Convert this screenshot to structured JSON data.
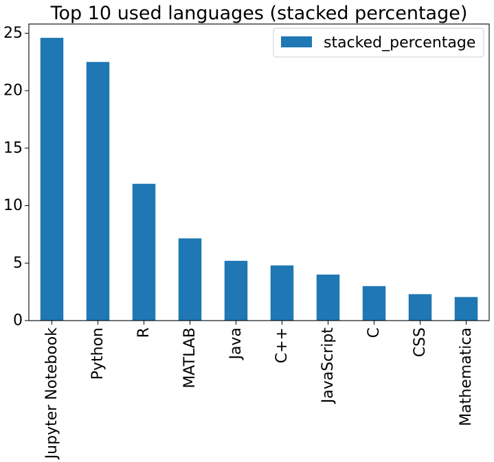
{
  "chart_data": {
    "type": "bar",
    "title": "Top 10 used languages (stacked percentage)",
    "xlabel": "",
    "ylabel": "",
    "categories": [
      "Jupyter Notebook",
      "Python",
      "R",
      "MATLAB",
      "Java",
      "C++",
      "JavaScript",
      "C",
      "CSS",
      "Mathematica"
    ],
    "series": [
      {
        "name": "stacked_percentage",
        "color": "#1f77b4",
        "values": [
          24.6,
          22.5,
          11.9,
          7.15,
          5.2,
          4.8,
          4.0,
          3.0,
          2.3,
          2.05
        ]
      }
    ],
    "ylim": [
      0,
      25.8
    ],
    "yticks": [
      0,
      5,
      10,
      15,
      20,
      25
    ],
    "grid": false,
    "legend": "top-right"
  }
}
